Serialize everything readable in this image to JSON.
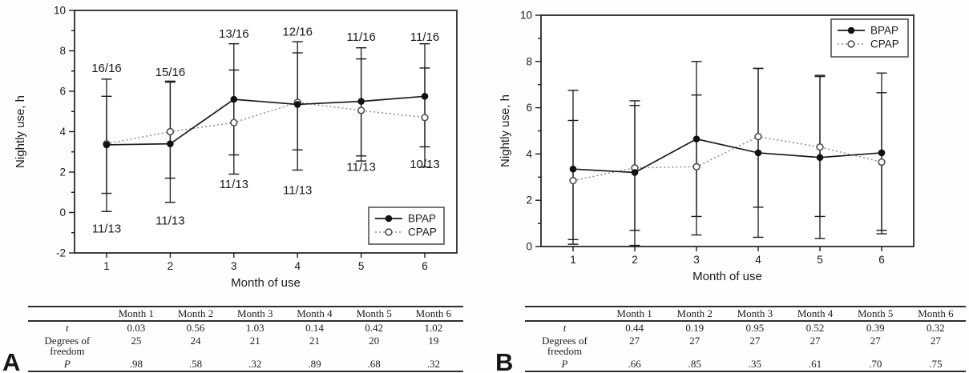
{
  "panel_labels": [
    "A",
    "B"
  ],
  "colors": {
    "axis": "#1c1c1c",
    "bpap_line": "#1c1c1c",
    "bpap_marker": "#111111",
    "cpap_line": "#8c8c8c",
    "cpap_marker_stroke": "#4f4f4f",
    "error_bar": "#1c1c1c",
    "text": "#1a1a1a",
    "background": "#ffffff"
  },
  "chart_data": [
    {
      "panel": "A",
      "type": "line",
      "title": "",
      "xlabel": "Month of use",
      "ylabel": "Nightly use, h",
      "x": [
        1,
        2,
        3,
        4,
        5,
        6
      ],
      "xtick_labels": [
        "1",
        "2",
        "3",
        "4",
        "5",
        "6"
      ],
      "ylim": [
        -2,
        10
      ],
      "ytick_step": 2,
      "ytick_minor_step": 1,
      "grid": false,
      "legend_position": "bottom-right",
      "legend_entries": [
        "BPAP",
        "CPAP"
      ],
      "series": [
        {
          "name": "BPAP",
          "line": "solid",
          "marker": "filled-circle",
          "values": [
            3.35,
            3.4,
            5.6,
            5.35,
            5.5,
            5.75
          ],
          "err_low": [
            0.95,
            0.5,
            2.85,
            3.1,
            2.8,
            3.25
          ],
          "err_high": [
            5.75,
            6.45,
            8.35,
            7.9,
            8.15,
            8.35
          ]
        },
        {
          "name": "CPAP",
          "line": "dotted",
          "marker": "open-circle",
          "values": [
            3.4,
            4.0,
            4.45,
            5.45,
            5.05,
            4.7
          ],
          "err_low": [
            0.05,
            1.7,
            1.9,
            2.1,
            2.55,
            2.25
          ],
          "err_high": [
            6.6,
            6.5,
            7.05,
            8.45,
            7.6,
            7.15
          ]
        }
      ],
      "annotations": {
        "top": {
          "texts": [
            "16/16",
            "15/16",
            "13/16",
            "12/16",
            "11/16",
            "11/16"
          ],
          "y": [
            7.15,
            6.95,
            8.85,
            8.95,
            8.7,
            8.7
          ]
        },
        "bottom": {
          "texts": [
            "11/13",
            "11/13",
            "11/13",
            "11/13",
            "11/13",
            "10/13"
          ],
          "y": [
            -0.8,
            -0.4,
            1.4,
            1.1,
            2.25,
            2.4
          ]
        }
      }
    },
    {
      "panel": "B",
      "type": "line",
      "title": "",
      "xlabel": "Month of use",
      "ylabel": "Nightly use, h",
      "x": [
        1,
        2,
        3,
        4,
        5,
        6
      ],
      "xtick_labels": [
        "1",
        "2",
        "3",
        "4",
        "5",
        "6"
      ],
      "ylim": [
        0,
        10
      ],
      "ytick_step": 2,
      "ytick_minor_step": 1,
      "grid": false,
      "legend_position": "top-right",
      "legend_entries": [
        "BPAP",
        "CPAP"
      ],
      "series": [
        {
          "name": "BPAP",
          "line": "solid",
          "marker": "filled-circle",
          "values": [
            3.35,
            3.2,
            4.65,
            4.05,
            3.85,
            4.05
          ],
          "err_low": [
            0.1,
            0.05,
            1.3,
            0.4,
            0.35,
            0.55
          ],
          "err_high": [
            6.75,
            6.3,
            8.0,
            7.7,
            7.4,
            7.5
          ]
        },
        {
          "name": "CPAP",
          "line": "dotted",
          "marker": "open-circle",
          "values": [
            2.85,
            3.4,
            3.45,
            4.75,
            4.3,
            3.65
          ],
          "err_low": [
            0.3,
            0.7,
            0.5,
            1.7,
            1.3,
            0.7
          ],
          "err_high": [
            5.45,
            6.1,
            6.55,
            7.7,
            7.35,
            6.65
          ]
        }
      ],
      "annotations": null
    }
  ],
  "tables": [
    {
      "panel": "A",
      "col_headers": [
        "",
        "Month 1",
        "Month 2",
        "Month 3",
        "Month 4",
        "Month 5",
        "Month 6"
      ],
      "rows": [
        {
          "label": "t",
          "italic": true,
          "values": [
            "0.03",
            "0.56",
            "1.03",
            "0.14",
            "0.42",
            "1.02"
          ]
        },
        {
          "label": "Degrees of freedom",
          "italic": false,
          "values": [
            "25",
            "24",
            "21",
            "21",
            "20",
            "19"
          ]
        },
        {
          "label": "P",
          "italic": true,
          "values": [
            ".98",
            ".58",
            ".32",
            ".89",
            ".68",
            ".32"
          ]
        }
      ]
    },
    {
      "panel": "B",
      "col_headers": [
        "",
        "Month 1",
        "Month 2",
        "Month 3",
        "Month 4",
        "Month 5",
        "Month 6"
      ],
      "rows": [
        {
          "label": "t",
          "italic": true,
          "values": [
            "0.44",
            "0.19",
            "0.95",
            "0.52",
            "0.39",
            "0.32"
          ]
        },
        {
          "label": "Degrees of freedom",
          "italic": false,
          "values": [
            "27",
            "27",
            "27",
            "27",
            "27",
            "27"
          ]
        },
        {
          "label": "P",
          "italic": true,
          "values": [
            ".66",
            ".85",
            ".35",
            ".61",
            ".70",
            ".75"
          ]
        }
      ]
    }
  ]
}
